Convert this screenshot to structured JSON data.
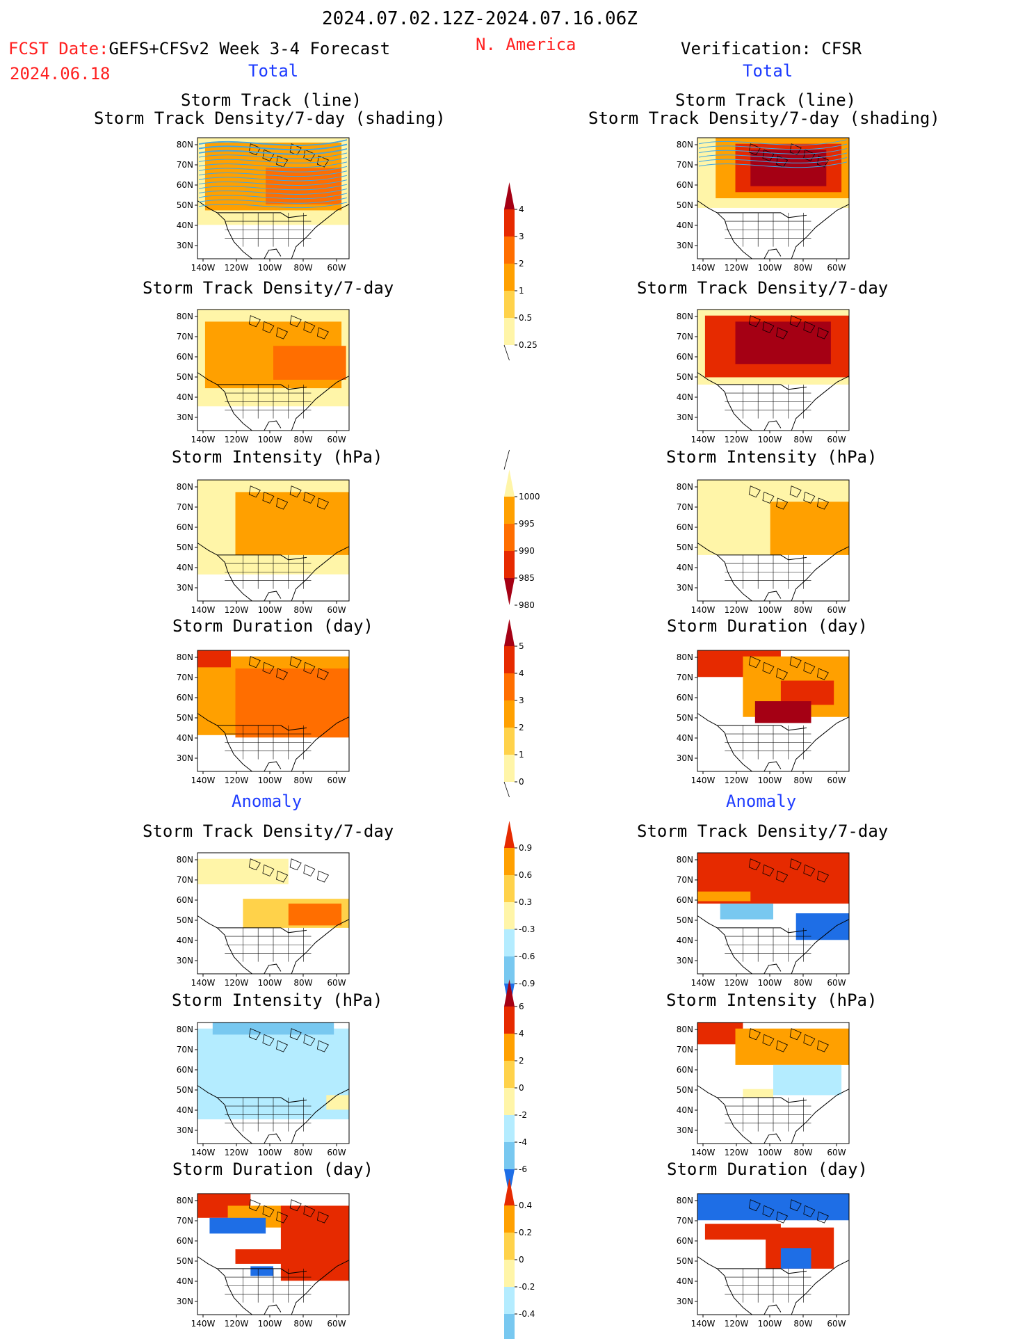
{
  "header": {
    "date_range": "2024.07.02.12Z-2024.07.16.06Z",
    "fcst_label": "FCST Date:",
    "model": "GEFS+CFSv2 Week 3-4 Forecast",
    "region": "N. America",
    "fcst_date": "2024.06.18",
    "verification": "Verification: CFSR",
    "left_section": "Total",
    "right_section": "Total",
    "left_anomaly": "Anomaly",
    "right_anomaly": "Anomaly"
  },
  "colors": {
    "red_text": "#ff2020",
    "blue_text": "#1e3cff",
    "pale": "#fff5a8",
    "light_orange": "#ffd24a",
    "orange": "#ffa000",
    "dark_orange": "#ff6e00",
    "red": "#e62a00",
    "dark_red": "#a50014",
    "light_blue": "#b4ecff",
    "mid_blue": "#78c8f0",
    "blue": "#1e6ee6"
  },
  "map_axes": {
    "lat_ticks": [
      "80N",
      "70N",
      "60N",
      "50N",
      "40N",
      "30N"
    ],
    "lon_ticks": [
      "140W",
      "120W",
      "100W",
      "80W",
      "60W"
    ]
  },
  "panels": [
    {
      "id": "fc-track",
      "title1": "Storm Track (line)",
      "title2": "Storm Track Density/7-day (shading)"
    },
    {
      "id": "fc-density",
      "title1": "Storm Track Density/7-day"
    },
    {
      "id": "fc-intensity",
      "title1": "Storm Intensity (hPa)"
    },
    {
      "id": "fc-duration",
      "title1": "Storm Duration (day)"
    },
    {
      "id": "fc-density-anom",
      "title1": "Storm Track Density/7-day"
    },
    {
      "id": "fc-intensity-anom",
      "title1": "Storm Intensity (hPa)"
    },
    {
      "id": "fc-duration-anom",
      "title1": "Storm Duration (day)"
    },
    {
      "id": "ob-track",
      "title1": "Storm Track (line)",
      "title2": "Storm Track Density/7-day (shading)"
    },
    {
      "id": "ob-density",
      "title1": "Storm Track Density/7-day"
    },
    {
      "id": "ob-intensity",
      "title1": "Storm Intensity (hPa)"
    },
    {
      "id": "ob-duration",
      "title1": "Storm Duration (day)"
    },
    {
      "id": "ob-density-anom",
      "title1": "Storm Track Density/7-day"
    },
    {
      "id": "ob-intensity-anom",
      "title1": "Storm Intensity (hPa)"
    },
    {
      "id": "ob-duration-anom",
      "title1": "Storm Duration (day)"
    }
  ],
  "colorbars": [
    {
      "id": "cb-density",
      "labels": [
        "4",
        "3",
        "2",
        "1",
        "0.5",
        "0.25"
      ]
    },
    {
      "id": "cb-intensity",
      "labels": [
        "1000",
        "995",
        "990",
        "985",
        "980"
      ]
    },
    {
      "id": "cb-duration",
      "labels": [
        "5",
        "4",
        "3",
        "2",
        "1",
        "0"
      ]
    },
    {
      "id": "cb-density-anom",
      "labels": [
        "0.9",
        "0.6",
        "0.3",
        "-0.3",
        "-0.6",
        "-0.9"
      ]
    },
    {
      "id": "cb-intensity-anom",
      "labels": [
        "6",
        "4",
        "2",
        "0",
        "-2",
        "-4",
        "-6"
      ]
    },
    {
      "id": "cb-duration-anom",
      "labels": [
        "0.4",
        "0.2",
        "0",
        "-0.2",
        "-0.4"
      ]
    }
  ]
}
